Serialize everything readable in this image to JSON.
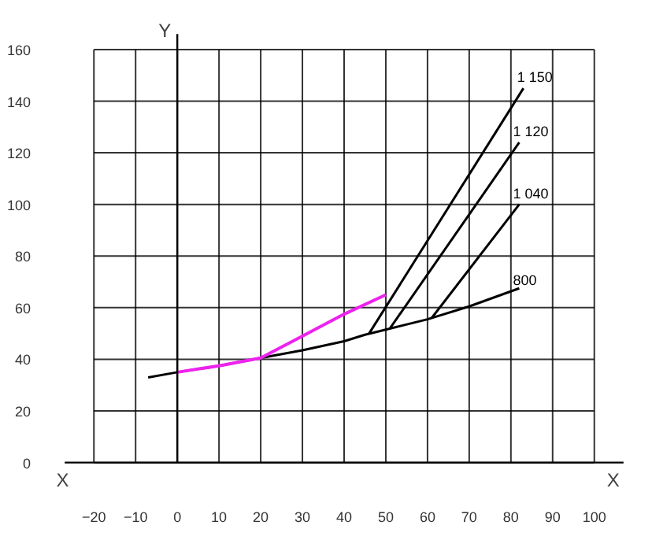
{
  "chart_data": {
    "type": "line",
    "xlabel": "X",
    "ylabel": "Y",
    "xlim": [
      -20,
      100
    ],
    "ylim": [
      0,
      160
    ],
    "xticks": [
      -20,
      -10,
      0,
      10,
      20,
      30,
      40,
      50,
      60,
      70,
      80,
      90,
      100
    ],
    "yticks": [
      0,
      20,
      40,
      60,
      80,
      100,
      120,
      140,
      160
    ],
    "grid": true,
    "marker": "none",
    "line_style": "solid",
    "series": [
      {
        "name": "800",
        "color": "#000000",
        "x": [
          -7,
          0,
          10,
          20,
          30,
          40,
          45,
          50,
          60,
          70,
          82
        ],
        "values": [
          33,
          35,
          37.5,
          40.5,
          43.5,
          47,
          49.5,
          51.5,
          55.5,
          60.5,
          67.5
        ]
      },
      {
        "name": "1 040",
        "color": "#000000",
        "x": [
          61,
          82
        ],
        "values": [
          56,
          100
        ]
      },
      {
        "name": "1 120",
        "color": "#000000",
        "x": [
          51,
          82
        ],
        "values": [
          52,
          124
        ]
      },
      {
        "name": "1 150",
        "color": "#000000",
        "x": [
          46,
          83
        ],
        "values": [
          50,
          145
        ]
      },
      {
        "color": "#ee22ee",
        "x": [
          0,
          10,
          20,
          30,
          40,
          50
        ],
        "values": [
          35,
          37.5,
          40.5,
          49,
          57.5,
          65
        ]
      }
    ]
  }
}
